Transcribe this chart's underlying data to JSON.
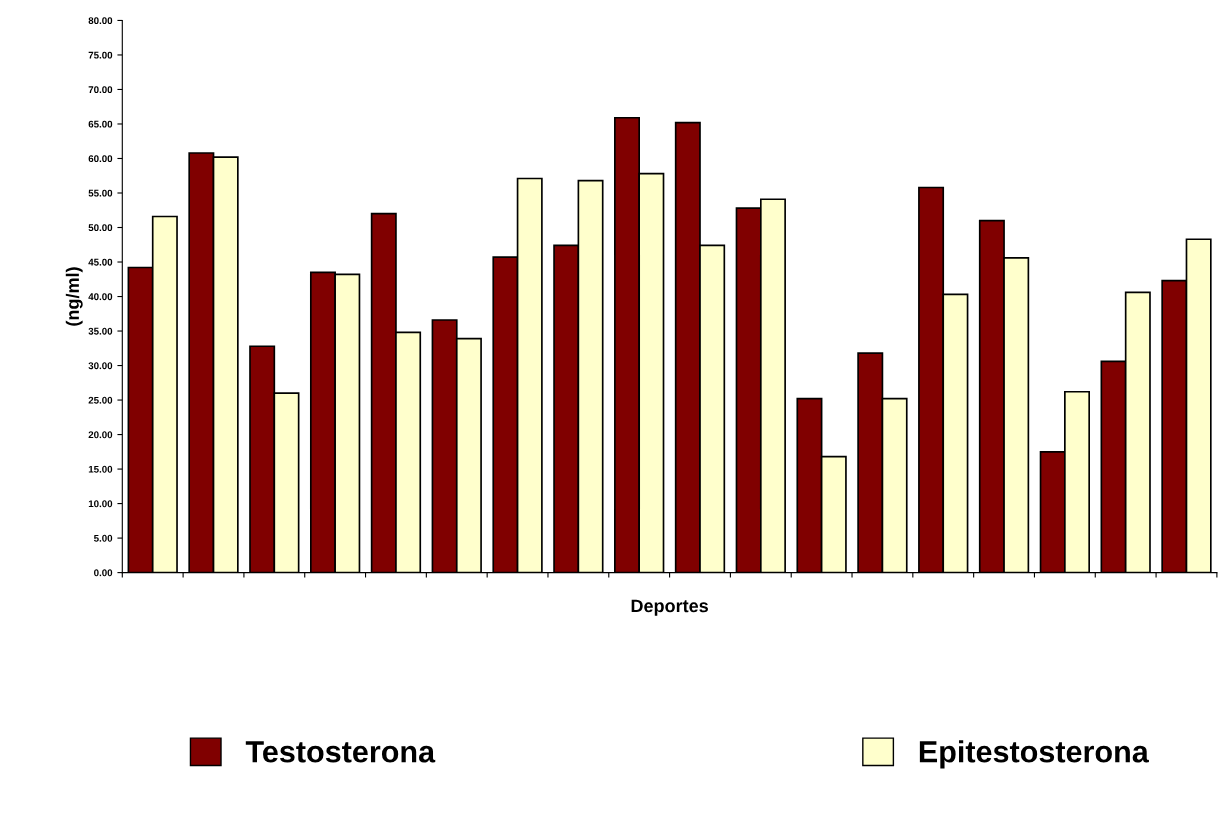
{
  "chart_data": {
    "type": "bar",
    "xlabel": "Deportes",
    "ylabel": "(ng/ml)",
    "categories": [
      null,
      null,
      null,
      null,
      null,
      null,
      null,
      null,
      null,
      null,
      null,
      null,
      null,
      null,
      null,
      null,
      null,
      null
    ],
    "series": [
      {
        "name": "Testosterona",
        "color": "#800000",
        "values": [
          44.2,
          60.8,
          32.8,
          43.5,
          52.0,
          36.6,
          45.7,
          47.4,
          65.9,
          65.2,
          52.8,
          25.2,
          31.8,
          55.8,
          51.0,
          17.5,
          30.6,
          42.3
        ]
      },
      {
        "name": "Epitestosterona",
        "color": "#ffffcc",
        "values": [
          51.6,
          60.2,
          26.0,
          43.2,
          34.8,
          33.9,
          57.1,
          56.8,
          57.8,
          47.4,
          54.1,
          16.8,
          25.2,
          40.3,
          45.6,
          26.2,
          40.6,
          48.3
        ]
      }
    ],
    "ylim": [
      0,
      80
    ],
    "yticks": [
      {
        "value": 0,
        "label": "0.00"
      },
      {
        "value": 5,
        "label": "5.00"
      },
      {
        "value": 10,
        "label": "10.00"
      },
      {
        "value": 15,
        "label": "15.00"
      },
      {
        "value": 20,
        "label": "20.00"
      },
      {
        "value": 25,
        "label": "25.00"
      },
      {
        "value": 30,
        "label": "30.00"
      },
      {
        "value": 35,
        "label": "35.00"
      },
      {
        "value": 40,
        "label": "40.00"
      },
      {
        "value": 45,
        "label": "45.00"
      },
      {
        "value": 50,
        "label": "50.00"
      },
      {
        "value": 55,
        "label": "55.00"
      },
      {
        "value": 60,
        "label": "60.00"
      },
      {
        "value": 65,
        "label": "65.00"
      },
      {
        "value": 70,
        "label": "70.00"
      },
      {
        "value": 75,
        "label": "75.00"
      },
      {
        "value": 80,
        "label": "80.00"
      }
    ],
    "grid": false,
    "legend": "bottom"
  }
}
